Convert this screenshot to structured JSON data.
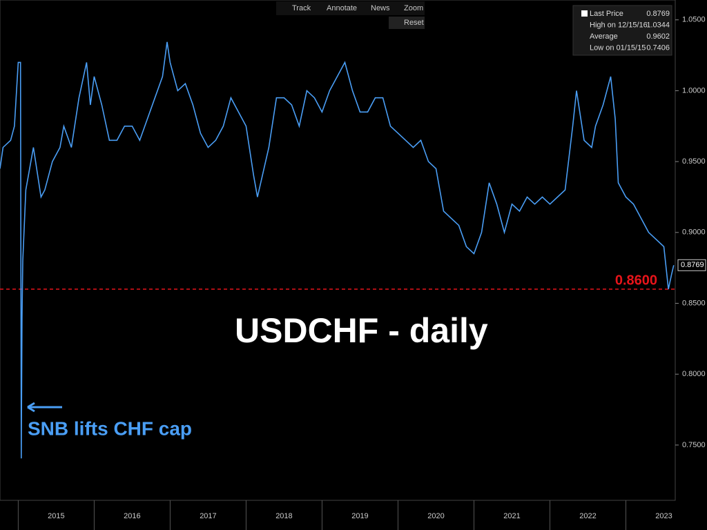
{
  "toolbar": [
    "Track",
    "Annotate",
    "News",
    "Zoom",
    "Reset"
  ],
  "chart_data": {
    "type": "line",
    "title": "USDCHF - daily",
    "annotation": "SNB lifts CHF cap",
    "legend": [
      {
        "name": "Last Price",
        "value": 0.8769
      },
      {
        "name": "High on 12/15/16",
        "value": 1.0344
      },
      {
        "name": "Average",
        "value": 0.9602
      },
      {
        "name": "Low on 01/15/15",
        "value": 0.7406
      }
    ],
    "reference_line": {
      "value": 0.86,
      "label": "0.8600",
      "color": "#e8141a"
    },
    "xlim": [
      2014.76,
      2023.65
    ],
    "xticks": [
      {
        "value": 2015.5,
        "label": "2015"
      },
      {
        "value": 2016.5,
        "label": "2016"
      },
      {
        "value": 2017.5,
        "label": "2017"
      },
      {
        "value": 2018.5,
        "label": "2018"
      },
      {
        "value": 2019.5,
        "label": "2019"
      },
      {
        "value": 2020.5,
        "label": "2020"
      },
      {
        "value": 2021.5,
        "label": "2021"
      },
      {
        "value": 2022.5,
        "label": "2022"
      },
      {
        "value": 2023.5,
        "label": "2023"
      }
    ],
    "ylim": [
      0.711,
      1.064
    ],
    "yticks": [
      {
        "value": 0.75,
        "label": "0.7500"
      },
      {
        "value": 0.8,
        "label": "0.8000"
      },
      {
        "value": 0.85,
        "label": "0.8500"
      },
      {
        "value": 0.9,
        "label": "0.9000"
      },
      {
        "value": 0.95,
        "label": "0.9500"
      },
      {
        "value": 1.0,
        "label": "1.0000"
      },
      {
        "value": 1.05,
        "label": "1.0500"
      }
    ],
    "x": [
      2014.76,
      2014.8,
      2014.9,
      2014.95,
      2015.0,
      2015.03,
      2015.04,
      2015.05,
      2015.06,
      2015.1,
      2015.2,
      2015.3,
      2015.35,
      2015.45,
      2015.55,
      2015.6,
      2015.7,
      2015.8,
      2015.9,
      2015.95,
      2016.0,
      2016.1,
      2016.2,
      2016.3,
      2016.4,
      2016.5,
      2016.6,
      2016.7,
      2016.8,
      2016.9,
      2016.96,
      2017.0,
      2017.1,
      2017.2,
      2017.3,
      2017.4,
      2017.5,
      2017.6,
      2017.7,
      2017.8,
      2017.9,
      2018.0,
      2018.1,
      2018.15,
      2018.3,
      2018.4,
      2018.5,
      2018.6,
      2018.7,
      2018.8,
      2018.9,
      2019.0,
      2019.1,
      2019.3,
      2019.4,
      2019.5,
      2019.6,
      2019.7,
      2019.8,
      2019.9,
      2020.0,
      2020.1,
      2020.2,
      2020.3,
      2020.4,
      2020.5,
      2020.6,
      2020.7,
      2020.8,
      2020.9,
      2021.0,
      2021.1,
      2021.2,
      2021.3,
      2021.4,
      2021.5,
      2021.6,
      2021.7,
      2021.8,
      2021.9,
      2022.0,
      2022.1,
      2022.2,
      2022.3,
      2022.35,
      2022.45,
      2022.55,
      2022.6,
      2022.7,
      2022.8,
      2022.86,
      2022.9,
      2023.0,
      2023.1,
      2023.2,
      2023.3,
      2023.4,
      2023.5,
      2023.56,
      2023.6,
      2023.63
    ],
    "series": [
      {
        "name": "Last Price",
        "color": "#4a9ef5",
        "values": [
          0.945,
          0.96,
          0.965,
          0.975,
          1.02,
          1.02,
          0.7406,
          0.84,
          0.88,
          0.93,
          0.96,
          0.925,
          0.93,
          0.95,
          0.96,
          0.975,
          0.96,
          0.995,
          1.02,
          0.99,
          1.01,
          0.99,
          0.965,
          0.965,
          0.975,
          0.975,
          0.965,
          0.98,
          0.995,
          1.01,
          1.0344,
          1.02,
          1.0,
          1.005,
          0.99,
          0.97,
          0.96,
          0.965,
          0.975,
          0.995,
          0.985,
          0.975,
          0.94,
          0.925,
          0.96,
          0.995,
          0.995,
          0.99,
          0.975,
          1.0,
          0.995,
          0.985,
          1.0,
          1.02,
          1.0,
          0.985,
          0.985,
          0.995,
          0.995,
          0.975,
          0.97,
          0.965,
          0.96,
          0.965,
          0.95,
          0.945,
          0.915,
          0.91,
          0.905,
          0.89,
          0.885,
          0.9,
          0.935,
          0.92,
          0.9,
          0.92,
          0.915,
          0.925,
          0.92,
          0.925,
          0.92,
          0.925,
          0.93,
          0.975,
          1.0,
          0.965,
          0.96,
          0.975,
          0.99,
          1.01,
          0.98,
          0.935,
          0.925,
          0.92,
          0.91,
          0.9,
          0.895,
          0.89,
          0.86,
          0.87,
          0.8769
        ]
      }
    ]
  }
}
